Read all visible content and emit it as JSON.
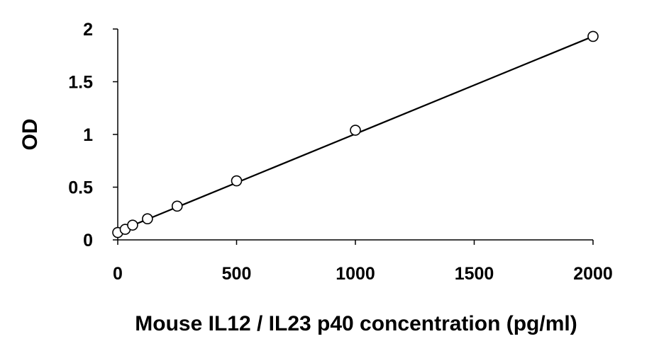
{
  "chart_data": {
    "type": "scatter",
    "title": "",
    "xlabel": "Mouse IL12 / IL23 p40 concentration (pg/ml)",
    "ylabel": "OD",
    "xlim": [
      0,
      2000
    ],
    "ylim": [
      0,
      2
    ],
    "x_ticks": [
      0,
      500,
      1000,
      1500,
      2000
    ],
    "y_ticks": [
      0,
      0.5,
      1,
      1.5,
      2
    ],
    "x_tick_labels": [
      "0",
      "500",
      "1000",
      "1500",
      "2000"
    ],
    "y_tick_labels": [
      "0",
      "0.5",
      "1",
      "1.5",
      "2"
    ],
    "grid": false,
    "legend": "none",
    "series": [
      {
        "marker": "open-circle",
        "x": [
          0,
          31.25,
          62.5,
          125,
          250,
          500,
          1000,
          2000
        ],
        "y": [
          0.07,
          0.1,
          0.14,
          0.2,
          0.32,
          0.56,
          1.04,
          1.93
        ]
      }
    ],
    "fit_line": {
      "style": "linear",
      "x": [
        0,
        2000
      ],
      "y": [
        0.08,
        1.93
      ]
    },
    "colors": {
      "axis": "#000000",
      "marker_stroke": "#000000",
      "line": "#000000"
    }
  }
}
